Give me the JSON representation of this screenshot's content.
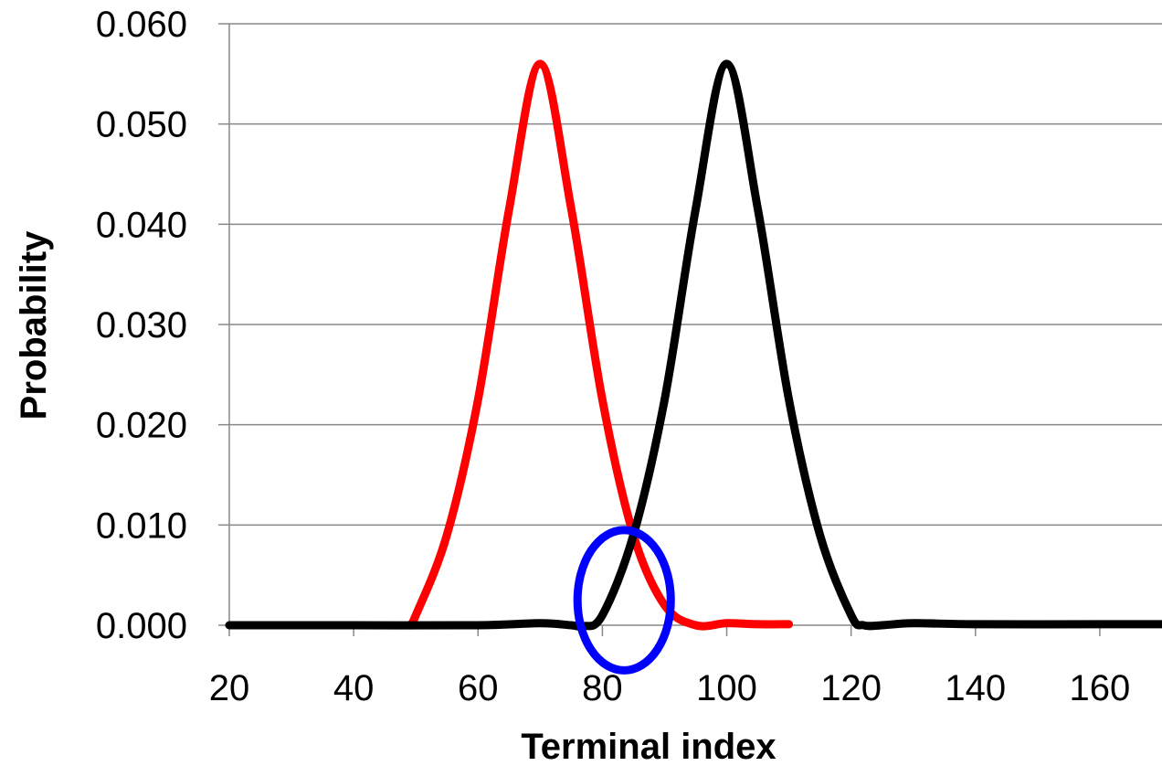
{
  "chart_data": {
    "type": "line",
    "title": "",
    "xlabel": "Terminal index",
    "ylabel": "Probability",
    "xlim": [
      20,
      170
    ],
    "ylim": [
      0,
      0.06
    ],
    "x_ticks": [
      20,
      40,
      60,
      80,
      100,
      120,
      140,
      160
    ],
    "x_tick_labels": [
      "20",
      "40",
      "60",
      "80",
      "100",
      "120",
      "140",
      "160"
    ],
    "y_ticks": [
      0,
      0.01,
      0.02,
      0.03,
      0.04,
      0.05,
      0.06
    ],
    "y_tick_labels": [
      "0.000",
      "0.010",
      "0.020",
      "0.030",
      "0.040",
      "0.050",
      "0.060"
    ],
    "grid": "horizontal",
    "legend": "none",
    "series": [
      {
        "color": "#ff0000",
        "x": [
          49,
          50,
          55,
          60,
          65,
          70,
          75,
          80,
          85,
          90,
          95,
          100,
          105,
          110
        ],
        "values": [
          0.0,
          0.001,
          0.009,
          0.0225,
          0.0415,
          0.056,
          0.0415,
          0.0225,
          0.009,
          0.002,
          0.0,
          0.0002,
          0.0001,
          0.0001
        ]
      },
      {
        "color": "#000000",
        "x": [
          20,
          40,
          60,
          70,
          75,
          77,
          80,
          85,
          90,
          95,
          100,
          105,
          110,
          115,
          120,
          122,
          125,
          130,
          140,
          160,
          170
        ],
        "values": [
          0.0,
          0.0,
          0.0,
          0.0002,
          0.0,
          -0.0001,
          0.001,
          0.009,
          0.0225,
          0.0415,
          0.056,
          0.0415,
          0.0225,
          0.009,
          0.001,
          0.0,
          0.0,
          0.0002,
          0.0001,
          0.0001,
          0.0001
        ]
      }
    ],
    "annotation": {
      "shape": "ellipse",
      "color": "#0000ff",
      "cx": 83.5,
      "cy": 0.0025,
      "rx": 7.5,
      "ry": 0.007
    }
  }
}
